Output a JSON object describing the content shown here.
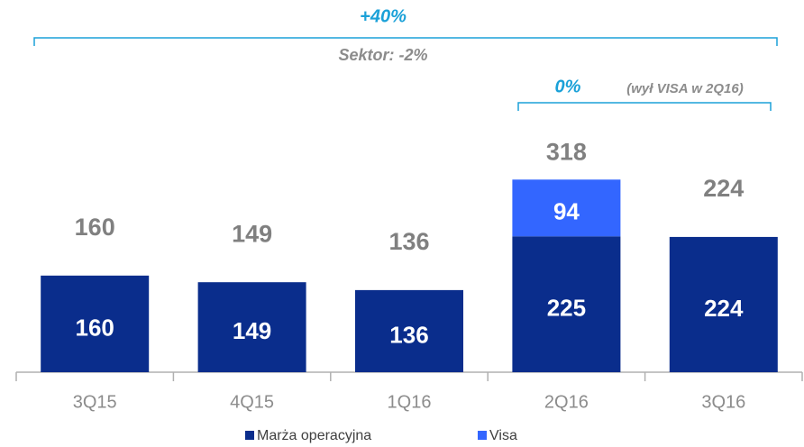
{
  "chart_data": {
    "type": "bar",
    "stacked": true,
    "categories": [
      "3Q15",
      "4Q15",
      "1Q16",
      "2Q16",
      "3Q16"
    ],
    "series": [
      {
        "name": "Marża operacyjna",
        "color": "#0a2d8c",
        "values": [
          160,
          149,
          136,
          225,
          224
        ]
      },
      {
        "name": "Visa",
        "color": "#3366ff",
        "values": [
          null,
          null,
          null,
          94,
          null
        ]
      }
    ],
    "totals": [
      160,
      149,
      136,
      318,
      224
    ],
    "ylim": [
      0,
      400
    ],
    "annotations": {
      "growth": "+40%",
      "sector": "Sektor: -2%",
      "growth_ex_visa": "0%",
      "note": "(wył VISA w 2Q16)"
    }
  }
}
